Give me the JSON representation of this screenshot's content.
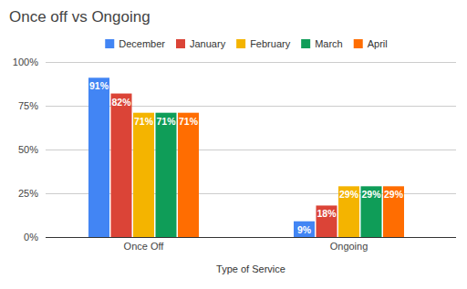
{
  "chart_data": {
    "type": "bar",
    "title": "Once off vs Ongoing",
    "x_label": "Type of Service",
    "categories": [
      "Once Off",
      "Ongoing"
    ],
    "series": [
      {
        "name": "December",
        "color": "#4285f4",
        "values": [
          91,
          9
        ],
        "value_labels": [
          "91%",
          "9%"
        ]
      },
      {
        "name": "January",
        "color": "#db4437",
        "values": [
          82,
          18
        ],
        "value_labels": [
          "82%",
          "18%"
        ]
      },
      {
        "name": "February",
        "color": "#f4b400",
        "values": [
          71,
          29
        ],
        "value_labels": [
          "71%",
          "29%"
        ]
      },
      {
        "name": "March",
        "color": "#0f9d58",
        "values": [
          71,
          29
        ],
        "value_labels": [
          "71%",
          "29%"
        ]
      },
      {
        "name": "April",
        "color": "#ff6d01",
        "values": [
          71,
          29
        ],
        "value_labels": [
          "71%",
          "29%"
        ]
      }
    ],
    "ylim": [
      0,
      100
    ],
    "yticks": [
      {
        "value": 0,
        "label": "0%"
      },
      {
        "value": 25,
        "label": "25%"
      },
      {
        "value": 50,
        "label": "50%"
      },
      {
        "value": 75,
        "label": "75%"
      },
      {
        "value": 100,
        "label": "100%"
      }
    ],
    "grid": true,
    "legend": "top",
    "data_labels": true
  }
}
